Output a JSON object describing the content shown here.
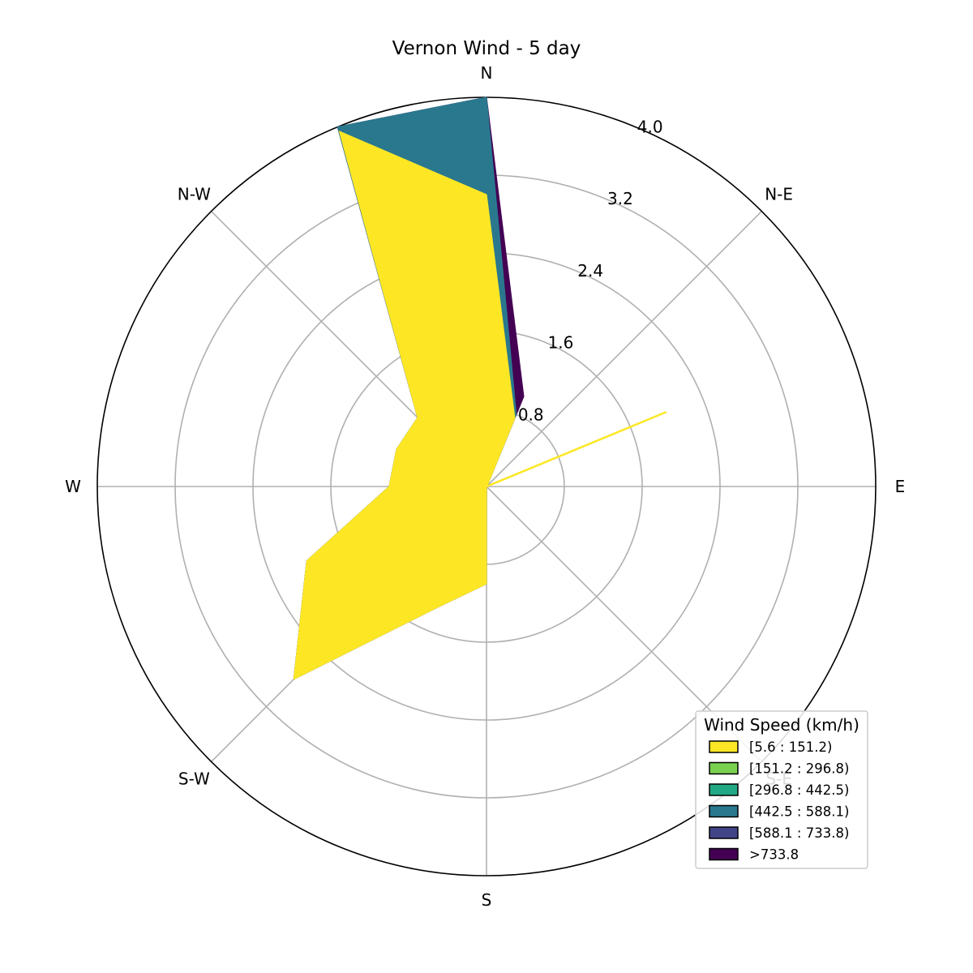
{
  "chart_data": {
    "type": "windrose",
    "title": "Vernon Wind - 5 day",
    "directions": [
      "N",
      "N-E",
      "E",
      "S-E",
      "S",
      "S-W",
      "W",
      "N-W"
    ],
    "radial_ticks": [
      "0.8",
      "1.6",
      "2.4",
      "3.2",
      "4.0"
    ],
    "rmax": 4.0,
    "angles_deg": [
      0,
      22.5,
      45,
      67.5,
      90,
      112.5,
      135,
      157.5,
      180,
      202.5,
      225,
      247.5,
      270,
      292.5,
      315,
      337.5
    ],
    "legend": {
      "title": "Wind Speed (km/h)",
      "placement": "lower-right",
      "entries": [
        {
          "label": "[5.6 : 151.2)",
          "color": "#fde725"
        },
        {
          "label": "[151.2 : 296.8)",
          "color": "#7ad151"
        },
        {
          "label": "[296.8 : 442.5)",
          "color": "#22a884"
        },
        {
          "label": "[442.5 : 588.1)",
          "color": "#2a788e"
        },
        {
          "label": "[588.1 : 733.8)",
          "color": "#414487"
        },
        {
          "label": ">733.8",
          "color": "#440154"
        }
      ]
    },
    "series": [
      {
        "bin": "[5.6 : 151.2)",
        "color": "#fde725",
        "values": [
          3.0,
          0.76,
          0.01,
          2.0,
          0.0,
          0.0,
          0.0,
          0.0,
          1.0,
          1.35,
          2.8,
          2.0,
          1.0,
          1.0,
          1.0,
          3.95
        ]
      },
      {
        "bin": "[442.5 : 588.1)",
        "color": "#2a788e",
        "values": [
          4.0,
          0.8,
          0.01,
          2.0,
          0.0,
          0.0,
          0.0,
          0.0,
          1.0,
          1.35,
          2.8,
          2.0,
          1.0,
          1.0,
          1.0,
          4.0
        ]
      },
      {
        "bin": ">733.8",
        "color": "#440154",
        "values": [
          4.0,
          1.0,
          0.01,
          2.0,
          0.0,
          0.0,
          0.0,
          0.0,
          1.0,
          1.35,
          2.8,
          2.0,
          1.0,
          1.0,
          1.0,
          4.0
        ]
      }
    ]
  }
}
